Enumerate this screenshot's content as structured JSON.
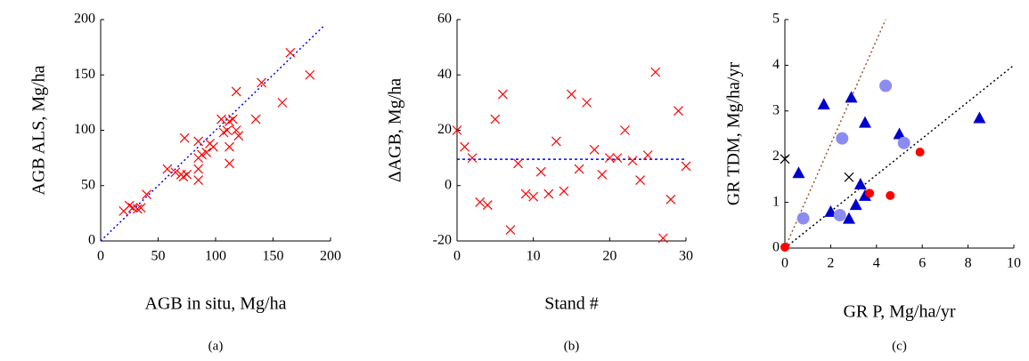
{
  "chart_data": [
    {
      "type": "scatter",
      "caption": "(a)",
      "xlabel": "AGB in situ, Mg/ha",
      "ylabel": "AGB ALS, Mg/ha",
      "xlim": [
        0,
        200
      ],
      "ylim": [
        0,
        200
      ],
      "xticks": [
        0,
        50,
        100,
        150,
        200
      ],
      "yticks": [
        0,
        50,
        100,
        150,
        200
      ],
      "series": [
        {
          "color": "#ff0000",
          "marker": "x",
          "x": [
            20,
            25,
            28,
            32,
            35,
            40,
            58,
            65,
            70,
            72,
            75,
            73,
            85,
            85,
            85,
            85,
            88,
            92,
            95,
            98,
            105,
            107,
            110,
            112,
            112,
            112,
            115,
            118,
            118,
            120,
            135,
            140,
            158,
            165,
            182
          ],
          "values": [
            27,
            32,
            30,
            29,
            30,
            42,
            65,
            62,
            60,
            58,
            60,
            93,
            90,
            75,
            65,
            55,
            78,
            80,
            88,
            85,
            110,
            98,
            100,
            108,
            85,
            70,
            110,
            135,
            100,
            95,
            110,
            143,
            125,
            170,
            150
          ]
        }
      ],
      "lines": [
        {
          "color": "#0000ff",
          "dash": "2,3",
          "x": [
            0,
            195
          ],
          "values": [
            0,
            195
          ]
        }
      ]
    },
    {
      "type": "scatter",
      "caption": "(b)",
      "xlabel": "Stand #",
      "ylabel": "ΔAGB, Mg/ha",
      "xlim": [
        0,
        30
      ],
      "ylim": [
        -20,
        60
      ],
      "xticks": [
        0,
        10,
        20,
        30
      ],
      "yticks": [
        -20,
        0,
        20,
        40,
        60
      ],
      "series": [
        {
          "color": "#ff0000",
          "marker": "x",
          "x": [
            0,
            1,
            2,
            3,
            4,
            5,
            6,
            7,
            8,
            9,
            10,
            11,
            12,
            13,
            14,
            15,
            16,
            17,
            18,
            19,
            20,
            21,
            22,
            23,
            24,
            25,
            26,
            27,
            28,
            29,
            30
          ],
          "values": [
            20,
            14,
            10,
            -6,
            -7,
            24,
            33,
            -16,
            8,
            -3,
            -4,
            5,
            -3,
            16,
            -2,
            33,
            6,
            30,
            13,
            4,
            10,
            10,
            20,
            9,
            2,
            11,
            41,
            -19,
            -5,
            27,
            7
          ]
        }
      ],
      "lines": [
        {
          "color": "#0000ff",
          "dash": "3,3",
          "x": [
            0,
            30
          ],
          "values": [
            9.5,
            9.5
          ]
        }
      ]
    },
    {
      "type": "scatter",
      "caption": "(c)",
      "xlabel": "GR P, Mg/ha/yr",
      "ylabel": "GR TDM, Mg/ha/yr",
      "xlim": [
        0,
        10
      ],
      "ylim": [
        0,
        5
      ],
      "xticks": [
        0,
        2,
        4,
        6,
        8,
        10
      ],
      "yticks": [
        0,
        1,
        2,
        3,
        4,
        5
      ],
      "series": [
        {
          "color": "#0000cc",
          "marker": "triangle",
          "x": [
            0.6,
            1.7,
            2.0,
            2.8,
            2.9,
            3.1,
            3.3,
            3.5,
            3.5,
            5.0,
            8.5
          ],
          "values": [
            1.65,
            3.15,
            0.8,
            0.65,
            3.3,
            0.95,
            1.4,
            2.75,
            1.15,
            2.5,
            2.85
          ]
        },
        {
          "color": "#8c8cf0",
          "marker": "circle",
          "x": [
            0.8,
            2.4,
            2.5,
            4.4,
            5.2
          ],
          "values": [
            0.65,
            0.72,
            2.4,
            3.55,
            2.3
          ]
        },
        {
          "color": "#ff0000",
          "marker": "dot",
          "x": [
            0.0,
            3.7,
            4.6,
            5.9
          ],
          "values": [
            0.02,
            1.2,
            1.15,
            2.1
          ]
        },
        {
          "color": "#000000",
          "marker": "x",
          "x": [
            0.0,
            2.8
          ],
          "values": [
            1.95,
            1.55
          ]
        }
      ],
      "lines": [
        {
          "color": "#a0522d",
          "dash": "2,3",
          "x": [
            0,
            4.4
          ],
          "values": [
            0,
            5
          ]
        },
        {
          "color": "#000000",
          "dash": "2,3",
          "x": [
            0,
            10
          ],
          "values": [
            0,
            4
          ]
        }
      ]
    }
  ]
}
